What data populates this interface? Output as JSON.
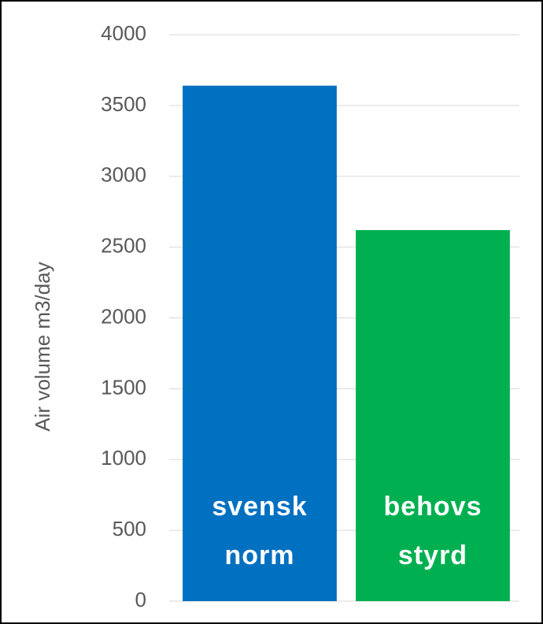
{
  "chart_data": {
    "type": "bar",
    "y_label": "Air volume m3/day",
    "categories": [
      "svensk norm",
      "behovs styrd"
    ],
    "series": [
      {
        "name": null,
        "colors": [
          "#0070c0",
          "#00b050"
        ],
        "values": [
          3640,
          2620
        ]
      }
    ],
    "ylim": [
      0,
      4000
    ],
    "yticks": [
      0,
      500,
      1000,
      1500,
      2000,
      2500,
      3000,
      3500,
      4000
    ],
    "grid": true
  }
}
